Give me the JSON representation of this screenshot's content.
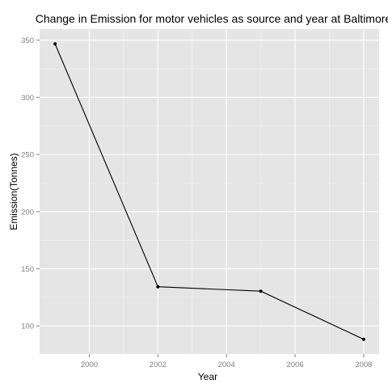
{
  "chart_data": {
    "type": "line",
    "title": "Change in Emission for motor vehicles as source and year at Baltimore",
    "xlabel": "Year",
    "ylabel": "Emission(Tonnes)",
    "x": [
      1999,
      2002,
      2005,
      2008
    ],
    "series": [
      {
        "values": [
          346.8,
          134.3,
          130.4,
          88.3
        ],
        "color": "#000000"
      }
    ],
    "xlim": [
      1998.55,
      2008.45
    ],
    "ylim": [
      75.4,
      359.7
    ],
    "xticks": [
      2000,
      2002,
      2004,
      2006,
      2008
    ],
    "xtick_labels": [
      "2000",
      "2002",
      "2004",
      "2006",
      "2008"
    ],
    "yticks": [
      100,
      150,
      200,
      250,
      300,
      350
    ],
    "ytick_labels": [
      "100",
      "150",
      "200",
      "250",
      "300",
      "350"
    ],
    "grid": true,
    "panel_background": "#e5e5e5",
    "grid_color": "#ffffff",
    "legend": "none"
  }
}
